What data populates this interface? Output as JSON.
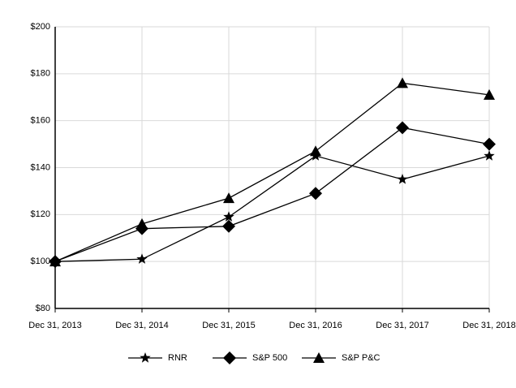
{
  "chart_data": {
    "type": "line",
    "categories": [
      "Dec 31, 2013",
      "Dec 31, 2014",
      "Dec 31, 2015",
      "Dec 31, 2016",
      "Dec 31, 2017",
      "Dec 31, 2018"
    ],
    "series": [
      {
        "name": "RNR",
        "color": "#000000",
        "marker": "star",
        "values": [
          100,
          101,
          119,
          145,
          135,
          145
        ]
      },
      {
        "name": "S&P 500",
        "color": "#000000",
        "marker": "diamond",
        "values": [
          100,
          114,
          115,
          129,
          157,
          150
        ]
      },
      {
        "name": "S&P P&C",
        "color": "#000000",
        "marker": "triangle",
        "values": [
          100,
          116,
          127,
          147,
          176,
          171
        ]
      }
    ],
    "ylim": [
      80,
      200
    ],
    "yticks": [
      {
        "value": 80,
        "label": "$80"
      },
      {
        "value": 100,
        "label": "$100"
      },
      {
        "value": 120,
        "label": "$120"
      },
      {
        "value": 140,
        "label": "$140"
      },
      {
        "value": 160,
        "label": "$160"
      },
      {
        "value": 180,
        "label": "$180"
      },
      {
        "value": 200,
        "label": "$200"
      }
    ],
    "grid": true,
    "legend": "bottom"
  }
}
